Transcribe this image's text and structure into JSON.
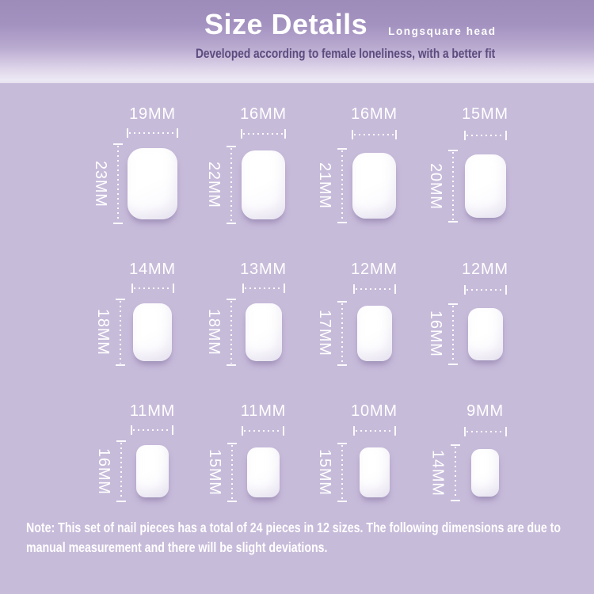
{
  "header": {
    "title": "Size Details",
    "shape_label": "Longsquare head",
    "tagline": "Developed according to female loneliness, with a better fit"
  },
  "sizes": [
    {
      "width_label": "19MM",
      "height_label": "23MM",
      "width_mm": 19,
      "height_mm": 23
    },
    {
      "width_label": "16MM",
      "height_label": "22MM",
      "width_mm": 16,
      "height_mm": 22
    },
    {
      "width_label": "16MM",
      "height_label": "21MM",
      "width_mm": 16,
      "height_mm": 21
    },
    {
      "width_label": "15MM",
      "height_label": "20MM",
      "width_mm": 15,
      "height_mm": 20
    },
    {
      "width_label": "14MM",
      "height_label": "18MM",
      "width_mm": 14,
      "height_mm": 18
    },
    {
      "width_label": "13MM",
      "height_label": "18MM",
      "width_mm": 13,
      "height_mm": 18
    },
    {
      "width_label": "12MM",
      "height_label": "17MM",
      "width_mm": 12,
      "height_mm": 17
    },
    {
      "width_label": "12MM",
      "height_label": "16MM",
      "width_mm": 12,
      "height_mm": 16
    },
    {
      "width_label": "11MM",
      "height_label": "16MM",
      "width_mm": 11,
      "height_mm": 16
    },
    {
      "width_label": "11MM",
      "height_label": "15MM",
      "width_mm": 11,
      "height_mm": 15
    },
    {
      "width_label": "10MM",
      "height_label": "15MM",
      "width_mm": 10,
      "height_mm": 15
    },
    {
      "width_label": "9MM",
      "height_label": "14MM",
      "width_mm": 9,
      "height_mm": 14
    }
  ],
  "note": "Note: This set of nail pieces has a total of 24 pieces in 12 sizes. The following dimensions are due to manual measurement and there will be slight deviations.",
  "colors": {
    "header_gradient_top": "#9d8bba",
    "header_gradient_bottom": "#ece8f4",
    "body_background": "#c7bbda",
    "title_text": "#ffffff",
    "tagline_text": "#5c4b7e",
    "measurement_text": "#ffffff",
    "nail": "#ffffff"
  }
}
